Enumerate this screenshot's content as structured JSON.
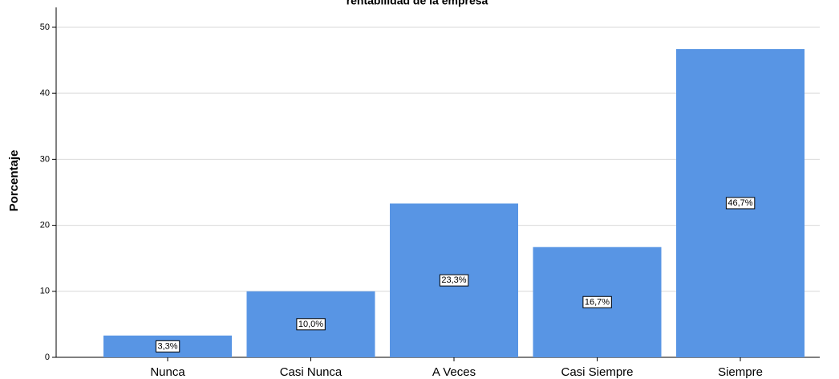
{
  "chart_data": {
    "type": "bar",
    "title": "rentabilidad de la empresa",
    "y_label": "Porcentaje",
    "categories": [
      "Nunca",
      "Casi Nunca",
      "A Veces",
      "Casi Siempre",
      "Siempre"
    ],
    "values": [
      3.3,
      10.0,
      23.3,
      16.7,
      46.7
    ],
    "value_labels": [
      "3,3%",
      "10,0%",
      "23,3%",
      "16,7%",
      "46,7%"
    ],
    "color": "#5895e4",
    "ylim": [
      0,
      53
    ],
    "yticks": [
      0,
      10,
      20,
      30,
      40,
      50
    ],
    "grid": true
  }
}
